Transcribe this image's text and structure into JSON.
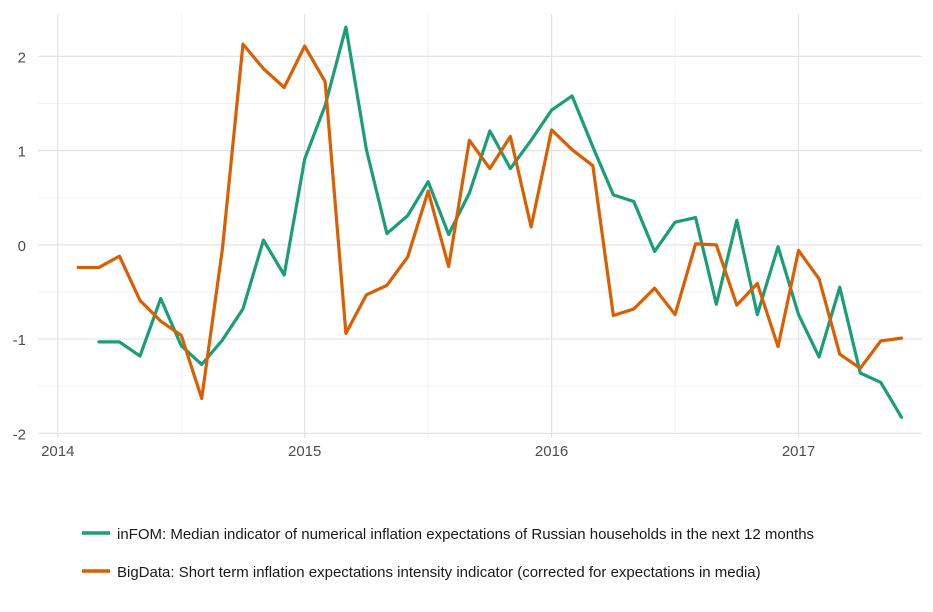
{
  "chart_data": {
    "type": "line",
    "title": "",
    "xlabel": "",
    "ylabel": "",
    "xlim": [
      2013.92,
      2017.5
    ],
    "ylim": [
      -2.05,
      2.45
    ],
    "x_ticks": [
      2014,
      2015,
      2016,
      2017
    ],
    "x_tick_labels": [
      "2014",
      "2015",
      "2016",
      "2017"
    ],
    "y_ticks": [
      -2,
      -1,
      0,
      1,
      2
    ],
    "y_tick_labels": [
      "-2",
      "-1",
      "0",
      "1",
      "2"
    ],
    "grid": true,
    "legend_position": "bottom",
    "series": [
      {
        "name": "inFOM:  Median indicator of numerical inflation expectations of Russian households in the next 12 months",
        "color": "#1b9e77",
        "x": [
          2014.167,
          2014.25,
          2014.333,
          2014.417,
          2014.5,
          2014.583,
          2014.667,
          2014.75,
          2014.833,
          2014.917,
          2015.0,
          2015.083,
          2015.167,
          2015.25,
          2015.333,
          2015.417,
          2015.5,
          2015.583,
          2015.667,
          2015.75,
          2015.833,
          2015.917,
          2016.0,
          2016.083,
          2016.167,
          2016.25,
          2016.333,
          2016.417,
          2016.5,
          2016.583,
          2016.667,
          2016.75,
          2016.833,
          2016.917,
          2017.0,
          2017.083,
          2017.167,
          2017.25,
          2017.333,
          2017.417
        ],
        "y": [
          -1.03,
          -1.03,
          -1.18,
          -0.57,
          -1.07,
          -1.27,
          -1.01,
          -0.68,
          0.05,
          -0.32,
          0.91,
          1.48,
          2.31,
          1.01,
          0.12,
          0.31,
          0.67,
          0.11,
          0.55,
          1.21,
          0.81,
          1.11,
          1.43,
          1.58,
          1.04,
          0.53,
          0.46,
          -0.07,
          0.24,
          0.29,
          -0.63,
          0.26,
          -0.74,
          -0.02,
          -0.74,
          -1.19,
          -0.45,
          -1.36,
          -1.46,
          -1.83
        ]
      },
      {
        "name": "BigData: Short term inflation expectations intensity indicator (corrected for expectations in media)",
        "color": "#d95f02",
        "x": [
          2014.083,
          2014.167,
          2014.25,
          2014.333,
          2014.417,
          2014.5,
          2014.583,
          2014.667,
          2014.75,
          2014.833,
          2014.917,
          2015.0,
          2015.083,
          2015.167,
          2015.25,
          2015.333,
          2015.417,
          2015.5,
          2015.583,
          2015.667,
          2015.75,
          2015.833,
          2015.917,
          2016.0,
          2016.083,
          2016.167,
          2016.25,
          2016.333,
          2016.417,
          2016.5,
          2016.583,
          2016.667,
          2016.75,
          2016.833,
          2016.917,
          2017.0,
          2017.083,
          2017.167,
          2017.25,
          2017.333,
          2017.417
        ],
        "y": [
          -0.24,
          -0.24,
          -0.12,
          -0.59,
          -0.81,
          -0.96,
          -1.63,
          -0.04,
          2.13,
          1.87,
          1.67,
          2.11,
          1.73,
          -0.94,
          -0.53,
          -0.43,
          -0.13,
          0.57,
          -0.23,
          1.11,
          0.81,
          1.15,
          0.19,
          1.22,
          1.01,
          0.84,
          -0.75,
          -0.68,
          -0.46,
          -0.74,
          0.01,
          0.0,
          -0.64,
          -0.41,
          -1.08,
          -0.06,
          -0.36,
          -1.16,
          -1.31,
          -1.02,
          -0.99
        ]
      }
    ]
  }
}
